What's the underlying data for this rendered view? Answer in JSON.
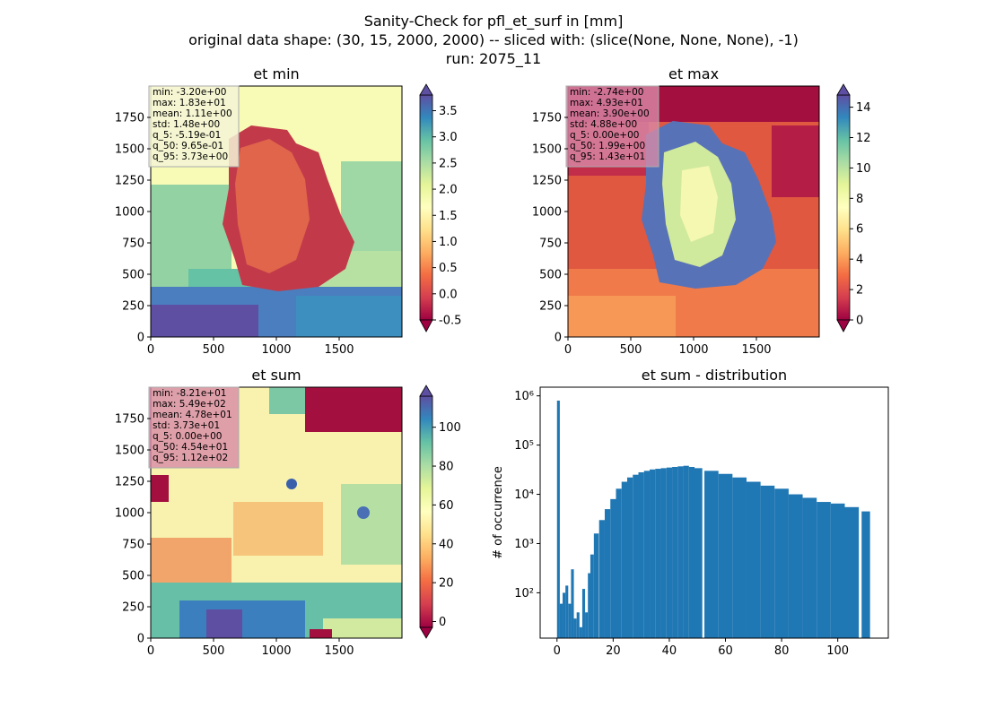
{
  "suptitle": [
    "Sanity-Check for pfl_et_surf in [mm]",
    "original data shape: (30, 15, 2000, 2000) -- sliced with: (slice(None, None, None), -1)",
    "run: 2075_11"
  ],
  "chart_data": [
    {
      "type": "heatmap",
      "title": "et min",
      "xlim": [
        0,
        2000
      ],
      "ylim": [
        0,
        2000
      ],
      "xticks": [
        "0",
        "500",
        "1000",
        "1500"
      ],
      "yticks": [
        "0",
        "250",
        "500",
        "750",
        "1000",
        "1250",
        "1500",
        "1750"
      ],
      "colorbar": {
        "range": [
          -0.5,
          3.8
        ],
        "ticks": [
          "-0.5",
          "0.0",
          "0.5",
          "1.0",
          "1.5",
          "2.0",
          "2.5",
          "3.0",
          "3.5"
        ],
        "colormap": "Spectral"
      },
      "stats": [
        "min: -3.20e+00",
        "max: 1.83e+01",
        "mean: 1.11e+00",
        "std: 1.48e+00",
        "q_5: -5.19e-01",
        "q_50: 9.65e-01",
        "q_95: 3.73e+00"
      ],
      "stats_box_color": "#f5f5d6"
    },
    {
      "type": "heatmap",
      "title": "et max",
      "xlim": [
        0,
        2000
      ],
      "ylim": [
        0,
        2000
      ],
      "xticks": [
        "0",
        "500",
        "1000",
        "1500"
      ],
      "yticks": [
        "0",
        "250",
        "500",
        "750",
        "1000",
        "1250",
        "1500",
        "1750"
      ],
      "colorbar": {
        "range": [
          0,
          14.8
        ],
        "ticks": [
          "0",
          "2",
          "4",
          "6",
          "8",
          "10",
          "12",
          "14"
        ],
        "colormap": "Spectral"
      },
      "stats": [
        "min: -2.74e+00",
        "max: 4.93e+01",
        "mean: 3.90e+00",
        "std: 4.88e+00",
        "q_5: 0.00e+00",
        "q_50: 1.99e+00",
        "q_95: 1.43e+01"
      ],
      "stats_box_color": "#d88aa8"
    },
    {
      "type": "heatmap",
      "title": "et sum",
      "xlim": [
        0,
        2000
      ],
      "ylim": [
        0,
        2000
      ],
      "xticks": [
        "0",
        "500",
        "1000",
        "1500"
      ],
      "yticks": [
        "0",
        "250",
        "500",
        "750",
        "1000",
        "1250",
        "1500",
        "1750"
      ],
      "colorbar": {
        "range": [
          -3,
          116
        ],
        "ticks": [
          "0",
          "20",
          "40",
          "60",
          "80",
          "100"
        ],
        "colormap": "Spectral"
      },
      "stats": [
        "min: -8.21e+01",
        "max: 5.49e+02",
        "mean: 4.78e+01",
        "std: 3.73e+01",
        "q_5: 0.00e+00",
        "q_50: 4.54e+01",
        "q_95: 1.12e+02"
      ],
      "stats_box_color": "#d88aa8"
    },
    {
      "type": "bar",
      "title": "et sum - distribution",
      "ylabel": "# of occurrence",
      "yscale": "log",
      "xlim": [
        -6,
        118
      ],
      "ylim": [
        12,
        1500000
      ],
      "xticks": [
        0,
        20,
        40,
        60,
        80,
        100
      ],
      "yticks": [
        {
          "value": 100,
          "label": "10²"
        },
        {
          "value": 1000,
          "label": "10³"
        },
        {
          "value": 10000,
          "label": "10⁴"
        },
        {
          "value": 100000,
          "label": "10⁵"
        },
        {
          "value": 1000000,
          "label": "10⁶"
        }
      ],
      "bar_color": "#1f77b4",
      "x": [
        0.5,
        1.5,
        2.5,
        3.5,
        4.5,
        5.5,
        6.5,
        7.5,
        8.5,
        9.5,
        10.5,
        11.5,
        12.5,
        14,
        16,
        18,
        20,
        22,
        24,
        26,
        28,
        30,
        32,
        34,
        36,
        38,
        40,
        42,
        44,
        46,
        48,
        50,
        55,
        60,
        65,
        70,
        75,
        80,
        85,
        90,
        95,
        100,
        105,
        110
      ],
      "values": [
        800000,
        60,
        100,
        140,
        60,
        300,
        30,
        40,
        20,
        120,
        40,
        250,
        600,
        1600,
        3000,
        5000,
        8000,
        13000,
        18000,
        22000,
        25000,
        28000,
        30000,
        32000,
        33000,
        34000,
        35000,
        36000,
        37000,
        38000,
        36000,
        34000,
        30000,
        26000,
        22000,
        18000,
        15000,
        13000,
        10000,
        8500,
        7000,
        6500,
        5500,
        4500
      ]
    }
  ]
}
